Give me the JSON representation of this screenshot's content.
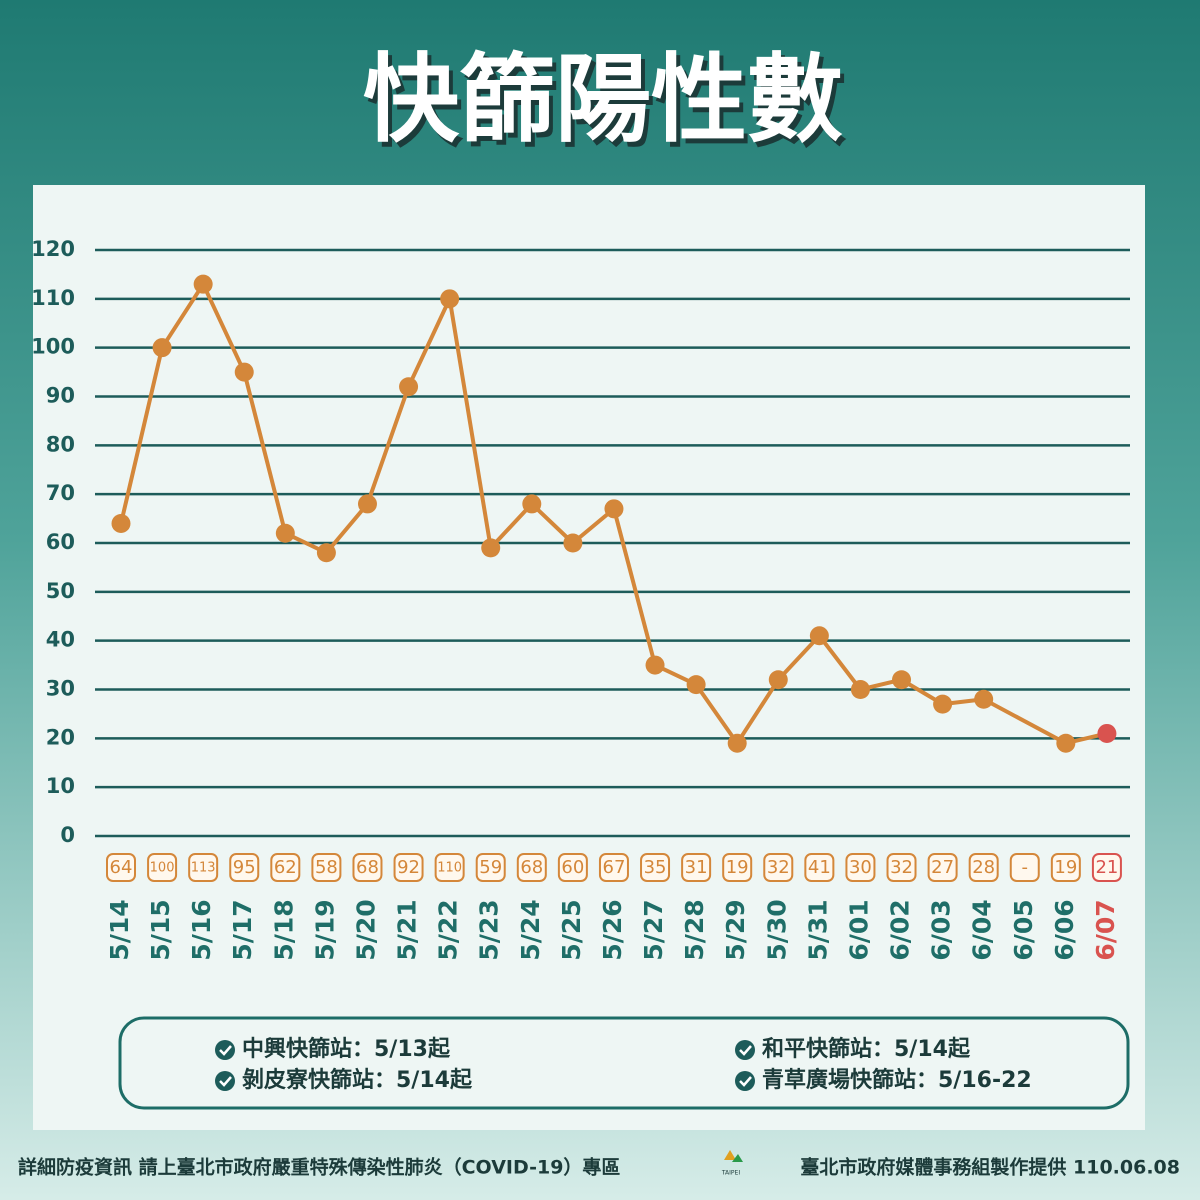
{
  "chart_data": {
    "type": "line",
    "title": "快篩陽性數",
    "categories": [
      "5/14",
      "5/15",
      "5/16",
      "5/17",
      "5/18",
      "5/19",
      "5/20",
      "5/21",
      "5/22",
      "5/23",
      "5/24",
      "5/25",
      "5/26",
      "5/27",
      "5/28",
      "5/29",
      "5/30",
      "5/31",
      "6/01",
      "6/02",
      "6/03",
      "6/04",
      "6/05",
      "6/06",
      "6/07"
    ],
    "values": [
      64,
      100,
      113,
      95,
      62,
      58,
      68,
      92,
      110,
      59,
      68,
      60,
      67,
      35,
      31,
      19,
      32,
      41,
      30,
      32,
      27,
      28,
      null,
      19,
      21
    ],
    "value_labels": [
      "64",
      "100",
      "113",
      "95",
      "62",
      "58",
      "68",
      "92",
      "110",
      "59",
      "68",
      "60",
      "67",
      "35",
      "31",
      "19",
      "32",
      "41",
      "30",
      "32",
      "27",
      "28",
      "-",
      "19",
      "21"
    ],
    "color": "#d4873a",
    "highlight_color": "#d9534f",
    "ylim": [
      0,
      120
    ],
    "yticks": [
      0,
      10,
      20,
      30,
      40,
      50,
      60,
      70,
      80,
      90,
      100,
      110,
      120
    ],
    "grid": true
  },
  "legend_notes": [
    "中興快篩站：5/13起",
    "剝皮寮快篩站：5/14起",
    "和平快篩站：5/14起",
    "青草廣場快篩站：5/16-22"
  ],
  "footer": {
    "left": "詳細防疫資訊 請上臺北市政府嚴重特殊傳染性肺炎（COVID-19）專區",
    "logo": "TAIPEI",
    "right": "臺北市政府媒體事務組製作提供 110.06.08"
  }
}
